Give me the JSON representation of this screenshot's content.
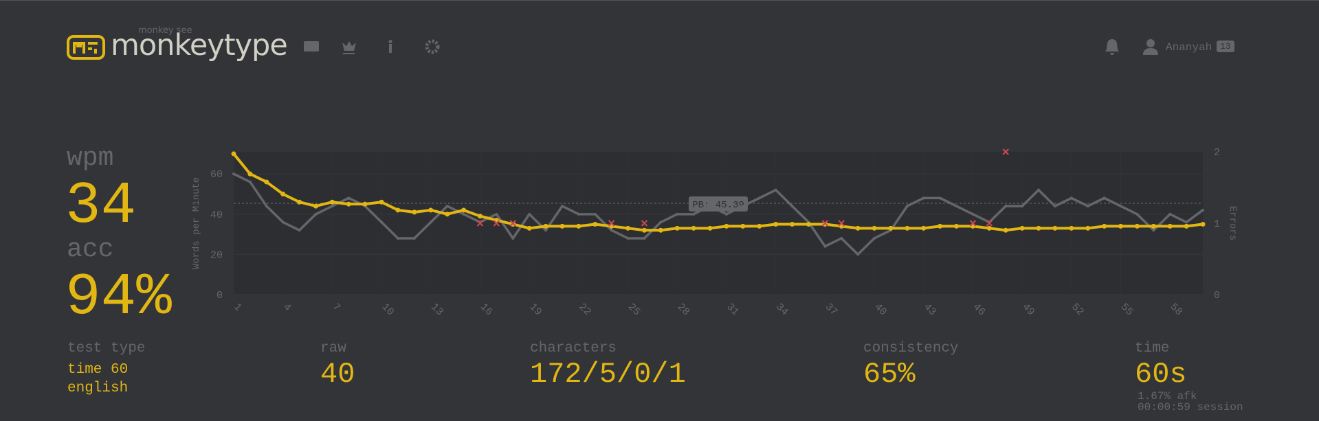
{
  "header": {
    "logo_top": "monkey see",
    "logo": "monkeytype",
    "user": "Ananyah",
    "level": "13"
  },
  "stats": {
    "wpm_label": "wpm",
    "wpm": "34",
    "acc_label": "acc",
    "acc": "94%",
    "test_type_label": "test type",
    "test_type": "time 60",
    "language": "english",
    "raw_label": "raw",
    "raw": "40",
    "characters_label": "characters",
    "characters": "172/5/0/1",
    "consistency_label": "consistency",
    "consistency": "65%",
    "time_label": "time",
    "time": "60s",
    "afk": "1.67% afk",
    "session": "00:00:59 session"
  },
  "chart_data": {
    "type": "line",
    "x": [
      1,
      2,
      3,
      4,
      5,
      6,
      7,
      8,
      9,
      10,
      11,
      12,
      13,
      14,
      15,
      16,
      17,
      18,
      19,
      20,
      21,
      22,
      23,
      24,
      25,
      26,
      27,
      28,
      29,
      30,
      31,
      32,
      33,
      34,
      35,
      36,
      37,
      38,
      39,
      40,
      41,
      42,
      43,
      44,
      45,
      46,
      47,
      48,
      49,
      50,
      51,
      52,
      53,
      54,
      55,
      56,
      57,
      58,
      59,
      60
    ],
    "series": [
      {
        "name": "wpm",
        "color": "#e2b714",
        "values": [
          70,
          60,
          56,
          50,
          46,
          44,
          46,
          45,
          45,
          46,
          42,
          41,
          42,
          40,
          42,
          39,
          37,
          35,
          33,
          34,
          34,
          34,
          35,
          34,
          33,
          32,
          32,
          33,
          33,
          33,
          34,
          34,
          34,
          35,
          35,
          35,
          35,
          34,
          33,
          33,
          33,
          33,
          33,
          34,
          34,
          34,
          33,
          32,
          33,
          33,
          33,
          33,
          33,
          34,
          34,
          34,
          34,
          34,
          34,
          35
        ]
      },
      {
        "name": "raw",
        "color": "#646669",
        "values": [
          60,
          56,
          44,
          36,
          32,
          40,
          44,
          48,
          44,
          36,
          28,
          28,
          36,
          44,
          40,
          36,
          40,
          28,
          40,
          32,
          44,
          40,
          40,
          32,
          28,
          28,
          36,
          40,
          40,
          44,
          40,
          44,
          48,
          52,
          44,
          36,
          24,
          28,
          20,
          28,
          32,
          44,
          48,
          48,
          44,
          40,
          36,
          44,
          44,
          52,
          44,
          48,
          44,
          48,
          44,
          40,
          32,
          40,
          36,
          42
        ]
      },
      {
        "name": "errors",
        "type": "scatter",
        "axis": "y2",
        "color": "#ca4754",
        "x": [
          16,
          17,
          18,
          24,
          26,
          37,
          38,
          46,
          47,
          48
        ],
        "values": [
          1,
          1,
          1,
          1,
          1,
          1,
          1,
          1,
          1,
          2
        ]
      }
    ],
    "pb": {
      "value": 45.39,
      "label": "PB: 45.39"
    },
    "xlim": [
      1,
      60
    ],
    "xticks": [
      1,
      4,
      7,
      10,
      13,
      16,
      19,
      22,
      25,
      28,
      31,
      34,
      37,
      40,
      43,
      46,
      49,
      52,
      55,
      58
    ],
    "ylim": [
      0,
      71
    ],
    "yticks": [
      0,
      20,
      40,
      60
    ],
    "ylabel": "Words per Minute",
    "y2lim": [
      0,
      2
    ],
    "y2ticks": [
      0,
      1,
      2
    ],
    "y2label": "Errors",
    "grid": true
  }
}
